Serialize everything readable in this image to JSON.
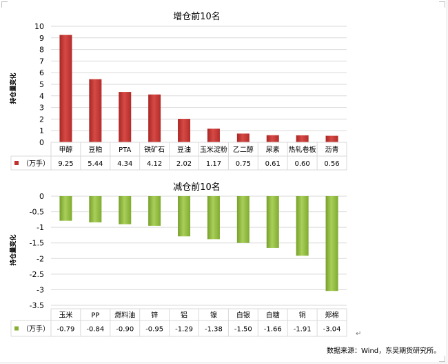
{
  "unit_label": "（万手）",
  "return_mark": "↵",
  "source": "数据来源：Wind，东吴期货研究所。",
  "colors": {
    "increase_bar": "#c0302f",
    "increase_bar_light": "#d64a45",
    "decrease_bar": "#86b034",
    "decrease_bar_light": "#a9cf5a",
    "grid": "#d9d9d9",
    "text": "#000000"
  },
  "chart_data": [
    {
      "type": "bar",
      "title": "增仓前10名",
      "ylabel": "持仓量变化",
      "ylim": [
        0,
        10
      ],
      "yticks": [
        0,
        1,
        2,
        3,
        4,
        5,
        6,
        7,
        8,
        9,
        10
      ],
      "categories": [
        "甲醇",
        "豆粕",
        "PTA",
        "铁矿石",
        "豆油",
        "玉米淀粉",
        "乙二醇",
        "尿素",
        "热轧卷板",
        "沥青"
      ],
      "values": [
        9.25,
        5.44,
        4.34,
        4.12,
        2.02,
        1.17,
        0.75,
        0.61,
        0.6,
        0.56
      ],
      "value_labels": [
        "9.25",
        "5.44",
        "4.34",
        "4.12",
        "2.02",
        "1.17",
        "0.75",
        "0.61",
        "0.60",
        "0.56"
      ],
      "series_label": "（万手）",
      "grid": true,
      "legend": "data-table"
    },
    {
      "type": "bar",
      "title": "减仓前10名",
      "ylabel": "持仓量变化",
      "ylim": [
        -3.5,
        0
      ],
      "yticks": [
        0,
        -0.5,
        -1,
        -1.5,
        -2,
        -2.5,
        -3,
        -3.5
      ],
      "categories": [
        "玉米",
        "PP",
        "燃料油",
        "锌",
        "铝",
        "镍",
        "白银",
        "白糖",
        "铜",
        "郑棉"
      ],
      "values": [
        -0.79,
        -0.84,
        -0.9,
        -0.95,
        -1.29,
        -1.38,
        -1.5,
        -1.66,
        -1.91,
        -3.04
      ],
      "value_labels": [
        "-0.79",
        "-0.84",
        "-0.90",
        "-0.95",
        "-1.29",
        "-1.38",
        "-1.50",
        "-1.66",
        "-1.91",
        "-3.04"
      ],
      "series_label": "（万手）",
      "grid": true,
      "legend": "data-table"
    }
  ]
}
